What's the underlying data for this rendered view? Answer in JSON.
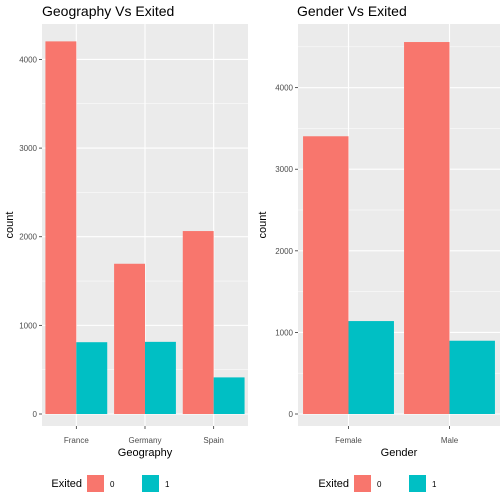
{
  "chart_data": [
    {
      "type": "bar",
      "title": "Geography Vs Exited",
      "xlabel": "Geography",
      "ylabel": "count",
      "categories": [
        "France",
        "Germany",
        "Spain"
      ],
      "series": [
        {
          "name": "0",
          "values": [
            4204,
            1695,
            2064
          ]
        },
        {
          "name": "1",
          "values": [
            810,
            814,
            413
          ]
        }
      ],
      "ylim": [
        0,
        4400
      ],
      "yticks": [
        0,
        1000,
        2000,
        3000,
        4000
      ],
      "grid": true,
      "legend": {
        "title": "Exited",
        "placement": "bottom"
      }
    },
    {
      "type": "bar",
      "title": "Gender Vs Exited",
      "xlabel": "Gender",
      "ylabel": "count",
      "categories": [
        "Female",
        "Male"
      ],
      "series": [
        {
          "name": "0",
          "values": [
            3404,
            4559
          ]
        },
        {
          "name": "1",
          "values": [
            1139,
            898
          ]
        }
      ],
      "ylim": [
        0,
        4780
      ],
      "yticks": [
        0,
        1000,
        2000,
        3000,
        4000
      ],
      "grid": true,
      "legend": {
        "title": "Exited",
        "placement": "bottom"
      }
    }
  ],
  "colors": {
    "series_0": "#F8766D",
    "series_1": "#00BFC4",
    "panel_bg": "#EBEBEB",
    "grid": "#FFFFFF",
    "axis_text": "#4D4D4D",
    "title": "#000000"
  }
}
